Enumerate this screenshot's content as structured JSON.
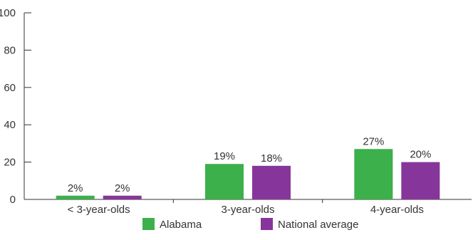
{
  "chart_data": {
    "type": "bar",
    "title": "",
    "xlabel": "",
    "ylabel": "",
    "ylim": [
      0,
      100
    ],
    "yticks": [
      "0",
      "20",
      "40",
      "60",
      "80",
      "100"
    ],
    "categories": [
      "< 3-year-olds",
      "3-year-olds",
      "4-year-olds"
    ],
    "series": [
      {
        "name": "Alabama",
        "color": "#3cb04a",
        "values": [
          2,
          19,
          27
        ],
        "labels": [
          "2%",
          "19%",
          "27%"
        ]
      },
      {
        "name": "National average",
        "color": "#86369a",
        "values": [
          2,
          18,
          20
        ],
        "labels": [
          "2%",
          "18%",
          "20%"
        ]
      }
    ],
    "grid": false,
    "legend": "bottom-center"
  }
}
